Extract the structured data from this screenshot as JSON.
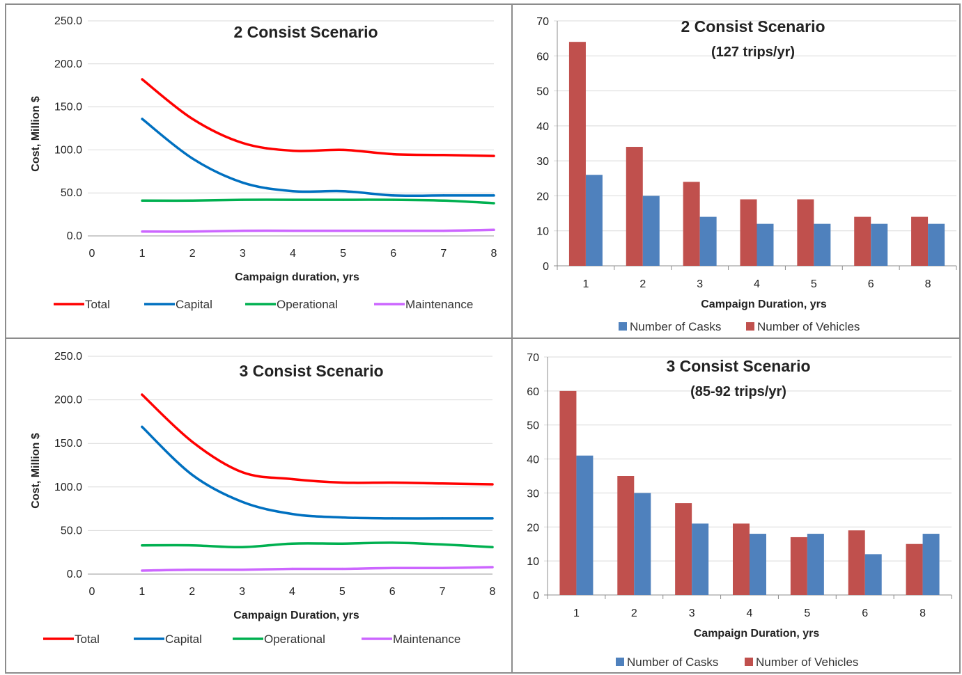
{
  "chart_data": [
    {
      "type": "line",
      "title": "2 Consist  Scenario",
      "xlabel": "Campaign duration, yrs",
      "ylabel": "Cost, Million $",
      "xticks": [
        "0",
        "1",
        "2",
        "3",
        "4",
        "5",
        "6",
        "7",
        "8"
      ],
      "yticks": [
        "0.0",
        "50.0",
        "100.0",
        "150.0",
        "200.0",
        "250.0"
      ],
      "xlim": [
        0,
        8
      ],
      "ylim": [
        0,
        250
      ],
      "grid": true,
      "legend_position": "bottom",
      "x": [
        1,
        2,
        3,
        4,
        5,
        6,
        7,
        8
      ],
      "series": [
        {
          "name": "Total",
          "color": "#ff0000",
          "values": [
            182,
            136,
            108,
            99,
            100,
            95,
            94,
            93
          ]
        },
        {
          "name": "Capital",
          "color": "#0070c0",
          "values": [
            136,
            90,
            62,
            52,
            52,
            47,
            47,
            47
          ]
        },
        {
          "name": "Operational",
          "color": "#00b050",
          "values": [
            41,
            41,
            42,
            42,
            42,
            42,
            41,
            38
          ]
        },
        {
          "name": "Maintenance",
          "color": "#cc66ff",
          "values": [
            5,
            5,
            6,
            6,
            6,
            6,
            6,
            7
          ]
        }
      ]
    },
    {
      "type": "bar",
      "title": "2 Consist Scenario",
      "subtitle": "(127 trips/yr)",
      "xlabel": "Campaign Duration, yrs",
      "ylabel": "",
      "categories": [
        "1",
        "2",
        "3",
        "4",
        "5",
        "6",
        "8"
      ],
      "yticks": [
        "0",
        "10",
        "20",
        "30",
        "40",
        "50",
        "60",
        "70"
      ],
      "ylim": [
        0,
        70
      ],
      "grid": true,
      "legend_position": "bottom",
      "series": [
        {
          "name": "Number of Vehicles",
          "color": "#c0504d",
          "values": [
            64,
            34,
            24,
            19,
            19,
            14,
            14
          ]
        },
        {
          "name": "Number of Casks",
          "color": "#4f81bd",
          "values": [
            26,
            20,
            14,
            12,
            12,
            12,
            12
          ]
        }
      ],
      "legend_order": [
        "Number of Casks",
        "Number of Vehicles"
      ]
    },
    {
      "type": "line",
      "title": "3 Consist Scenario",
      "xlabel": "Campaign Duration, yrs",
      "ylabel": "Cost, Million $",
      "xticks": [
        "0",
        "1",
        "2",
        "3",
        "4",
        "5",
        "6",
        "7",
        "8"
      ],
      "yticks": [
        "0.0",
        "50.0",
        "100.0",
        "150.0",
        "200.0",
        "250.0"
      ],
      "xlim": [
        0,
        8
      ],
      "ylim": [
        0,
        250
      ],
      "grid": true,
      "legend_position": "bottom",
      "x": [
        1,
        2,
        3,
        4,
        5,
        6,
        7,
        8
      ],
      "series": [
        {
          "name": "Total",
          "color": "#ff0000",
          "values": [
            206,
            152,
            117,
            109,
            105,
            105,
            104,
            103
          ]
        },
        {
          "name": "Capital",
          "color": "#0070c0",
          "values": [
            169,
            114,
            83,
            69,
            65,
            64,
            64,
            64
          ]
        },
        {
          "name": "Operational",
          "color": "#00b050",
          "values": [
            33,
            33,
            31,
            35,
            35,
            36,
            34,
            31
          ]
        },
        {
          "name": "Maintenance",
          "color": "#cc66ff",
          "values": [
            4,
            5,
            5,
            6,
            6,
            7,
            7,
            8
          ]
        }
      ]
    },
    {
      "type": "bar",
      "title": "3 Consist Scenario",
      "subtitle": "(85-92 trips/yr)",
      "xlabel": "Campaign Duration, yrs",
      "ylabel": "",
      "categories": [
        "1",
        "2",
        "3",
        "4",
        "5",
        "6",
        "8"
      ],
      "yticks": [
        "0",
        "10",
        "20",
        "30",
        "40",
        "50",
        "60",
        "70"
      ],
      "ylim": [
        0,
        70
      ],
      "grid": true,
      "legend_position": "bottom",
      "series": [
        {
          "name": "Number of Vehicles",
          "color": "#c0504d",
          "values": [
            60,
            35,
            27,
            21,
            17,
            19,
            15
          ]
        },
        {
          "name": "Number of Casks",
          "color": "#4f81bd",
          "values": [
            41,
            30,
            21,
            18,
            18,
            12,
            18
          ]
        }
      ],
      "legend_order": [
        "Number of Casks",
        "Number of Vehicles"
      ]
    }
  ]
}
